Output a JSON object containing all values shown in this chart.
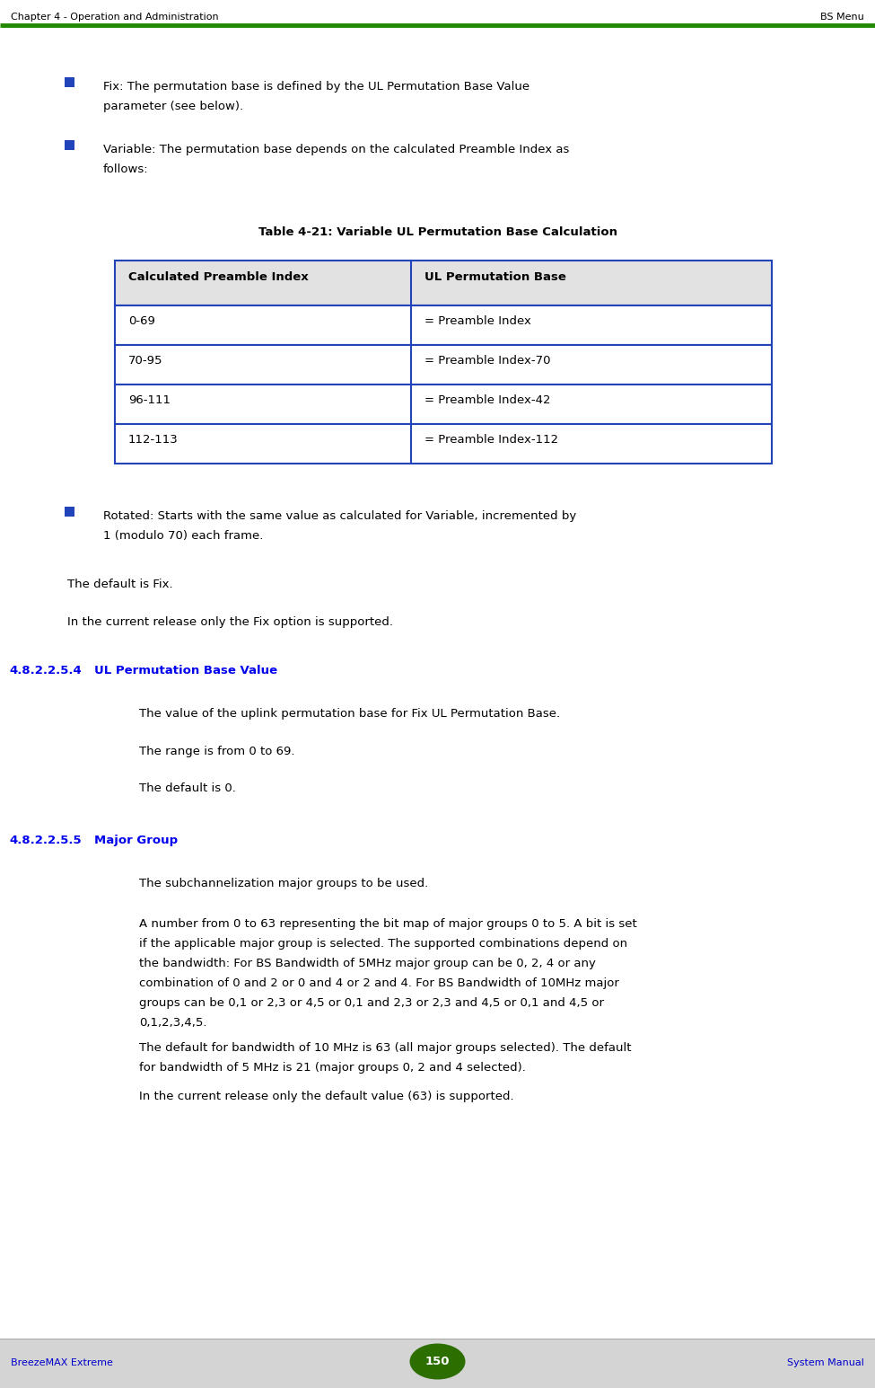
{
  "header_left": "Chapter 4 - Operation and Administration",
  "header_right": "BS Menu",
  "header_line_color": "#228800",
  "footer_left": "BreezeMAX Extreme",
  "footer_right": "System Manual",
  "footer_page": "150",
  "footer_bg": "#d4d4d4",
  "footer_text_color": "#0000cc",
  "footer_page_bg": "#2d6e00",
  "body_bg": "#ffffff",
  "bullet_color": "#2244bb",
  "text_color": "#000000",
  "section_color": "#0000ee",
  "bullet1_line1": "Fix: The permutation base is defined by the UL Permutation Base Value",
  "bullet1_line2": "parameter (see below).",
  "bullet2_line1": "Variable: The permutation base depends on the calculated Preamble Index as",
  "bullet2_line2": "follows:",
  "table_title": "Table 4-21: Variable UL Permutation Base Calculation",
  "table_header": [
    "Calculated Preamble Index",
    "UL Permutation Base"
  ],
  "table_header_bg": "#e2e2e2",
  "table_border_color": "#2244bb",
  "table_rows": [
    [
      "0-69",
      "= Preamble Index"
    ],
    [
      "70-95",
      "= Preamble Index-70"
    ],
    [
      "96-111",
      "= Preamble Index-42"
    ],
    [
      "112-113",
      "= Preamble Index-112"
    ]
  ],
  "bullet3_line1": "Rotated: Starts with the same value as calculated for Variable, incremented by",
  "bullet3_line2": "1 (modulo 70) each frame.",
  "para1": "The default is Fix.",
  "para2": "In the current release only the Fix option is supported.",
  "section1_num": "4.8.2.2.5.4",
  "section1_title": "UL Permutation Base Value",
  "section1_p1": "The value of the uplink permutation base for Fix UL Permutation Base.",
  "section1_p2": "The range is from 0 to 69.",
  "section1_p3": "The default is 0.",
  "section2_num": "4.8.2.2.5.5",
  "section2_title": "Major Group",
  "section2_p1": "The subchannelization major groups to be used.",
  "section2_p2_lines": [
    "A number from 0 to 63 representing the bit map of major groups 0 to 5. A bit is set",
    "if the applicable major group is selected. The supported combinations depend on",
    "the bandwidth: For BS Bandwidth of 5MHz major group can be 0, 2, 4 or any",
    "combination of 0 and 2 or 0 and 4 or 2 and 4. For BS Bandwidth of 10MHz major",
    "groups can be 0,1 or 2,3 or 4,5 or 0,1 and 2,3 or 2,3 and 4,5 or 0,1 and 4,5 or",
    "0,1,2,3,4,5."
  ],
  "section2_p3_lines": [
    "The default for bandwidth of 10 MHz is 63 (all major groups selected). The default",
    "for bandwidth of 5 MHz is 21 (major groups 0, 2 and 4 selected)."
  ],
  "section2_p4": "In the current release only the default value (63) is supported."
}
